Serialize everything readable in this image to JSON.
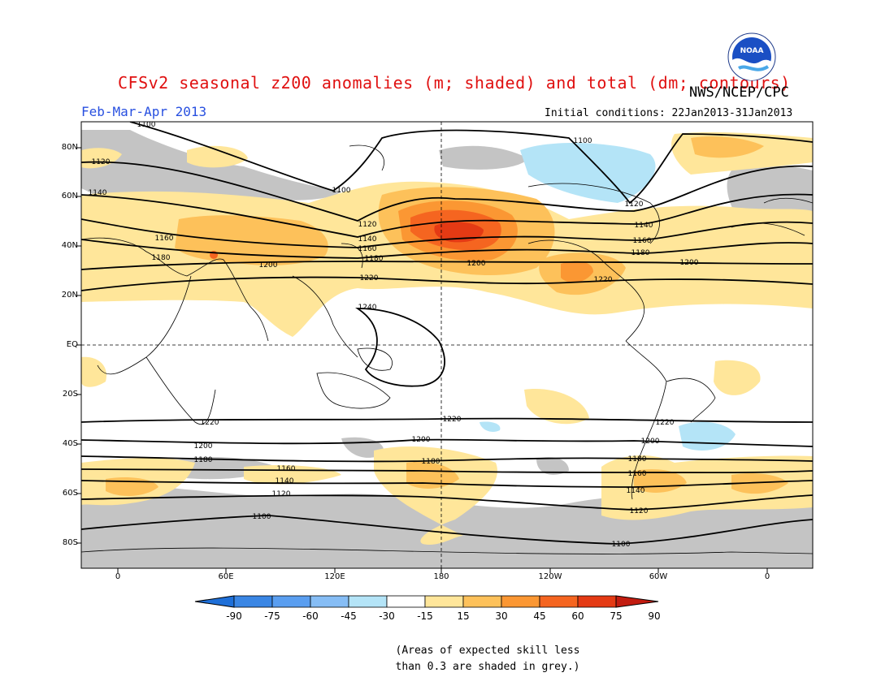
{
  "title": "CFSv2 seasonal z200 anomalies (m; shaded) and total (dm; contours)",
  "agency": "NWS/NCEP/CPC",
  "period": "Feb-Mar-Apr 2013",
  "initial_conditions": "Initial conditions: 22Jan2013-31Jan2013",
  "logo_text": "NOAA",
  "note_line1": "(Areas of expected skill less",
  "note_line2": "than 0.3 are shaded in grey.)",
  "lat_labels": [
    "80N",
    "60N",
    "40N",
    "20N",
    "EQ",
    "20S",
    "40S",
    "60S",
    "80S"
  ],
  "lon_labels": [
    "0",
    "60E",
    "120E",
    "180",
    "120W",
    "60W",
    "0"
  ],
  "colorbar": {
    "labels": [
      "-90",
      "-75",
      "-60",
      "-45",
      "-30",
      "-15",
      "15",
      "30",
      "45",
      "60",
      "75",
      "90"
    ],
    "colors": [
      "#1e6fd8",
      "#3a86e4",
      "#5a9ef0",
      "#86bdf5",
      "#b4e4f7",
      "#ffffff",
      "#ffe69a",
      "#fdc15a",
      "#fb9733",
      "#f56520",
      "#e43a14",
      "#c21c10"
    ]
  },
  "contours": {
    "nh": [
      {
        "label": "1100"
      },
      {
        "label": "1120"
      },
      {
        "label": "1140"
      },
      {
        "label": "1160"
      },
      {
        "label": "1180"
      },
      {
        "label": "1200"
      },
      {
        "label": "1220"
      },
      {
        "label": "1240"
      }
    ],
    "sh": [
      {
        "label": "1220"
      },
      {
        "label": "1200"
      },
      {
        "label": "1180"
      },
      {
        "label": "1160"
      },
      {
        "label": "1140"
      },
      {
        "label": "1120"
      },
      {
        "label": "1100"
      }
    ]
  }
}
